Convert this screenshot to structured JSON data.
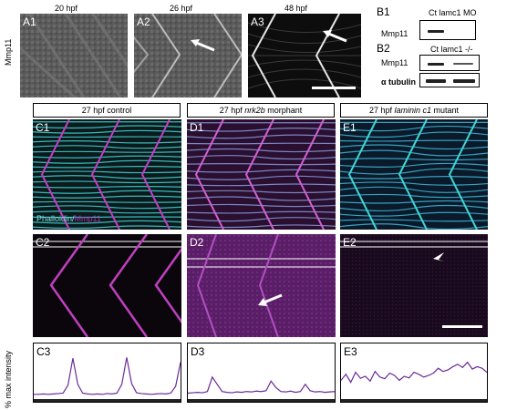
{
  "row_a": {
    "y_label": "Mmp11",
    "stages": [
      "20 hpf",
      "26 hpf",
      "48 hpf"
    ],
    "panels": [
      "A1",
      "A2",
      "A3"
    ]
  },
  "western": {
    "b1_label": "B1",
    "b1_lanes": "Ct  lamc1 MO",
    "b1_protein": "Mmp11",
    "b2_label": "B2",
    "b2_lanes": "Ct  lamc1 -/-",
    "b2_protein_1": "Mmp11",
    "b2_protein_2": "α tubulin"
  },
  "columns": [
    {
      "header": "27 hpf control",
      "panels": [
        "C1",
        "C2",
        "C3"
      ]
    },
    {
      "header_pre": "27 hpf ",
      "header_italic": "nrk2b",
      "header_post": " morphant",
      "panels": [
        "D1",
        "D2",
        "D3"
      ]
    },
    {
      "header_pre": "27 hpf ",
      "header_italic": "laminin c1",
      "header_post": " mutant",
      "panels": [
        "E1",
        "E2",
        "E3"
      ]
    }
  ],
  "stain_label_1": "Phalloidin/",
  "stain_label_2": "Mmp11",
  "intensity_axis": "% max intensity",
  "colors": {
    "phalloidin": "#3fd6d8",
    "mmp11": "#b030b0",
    "trace": "#6a2a9a"
  },
  "chart_data": [
    {
      "type": "line",
      "title": "C3",
      "values": [
        5,
        5,
        6,
        5,
        6,
        7,
        8,
        28,
        95,
        30,
        8,
        6,
        5,
        6,
        5,
        7,
        6,
        8,
        30,
        97,
        32,
        9,
        7,
        6,
        5,
        6,
        7,
        6,
        8,
        25,
        85
      ]
    },
    {
      "type": "line",
      "title": "D3",
      "values": [
        8,
        9,
        10,
        9,
        12,
        48,
        30,
        12,
        10,
        9,
        11,
        10,
        12,
        11,
        13,
        12,
        14,
        38,
        22,
        12,
        11,
        13,
        10,
        12,
        30,
        14,
        11,
        12,
        10,
        11,
        12
      ]
    },
    {
      "type": "line",
      "title": "E3",
      "values": [
        40,
        55,
        35,
        60,
        45,
        50,
        38,
        62,
        48,
        44,
        58,
        52,
        40,
        50,
        46,
        60,
        55,
        48,
        52,
        58,
        70,
        62,
        66,
        74,
        80,
        72,
        85,
        68,
        74,
        70,
        60
      ]
    }
  ]
}
